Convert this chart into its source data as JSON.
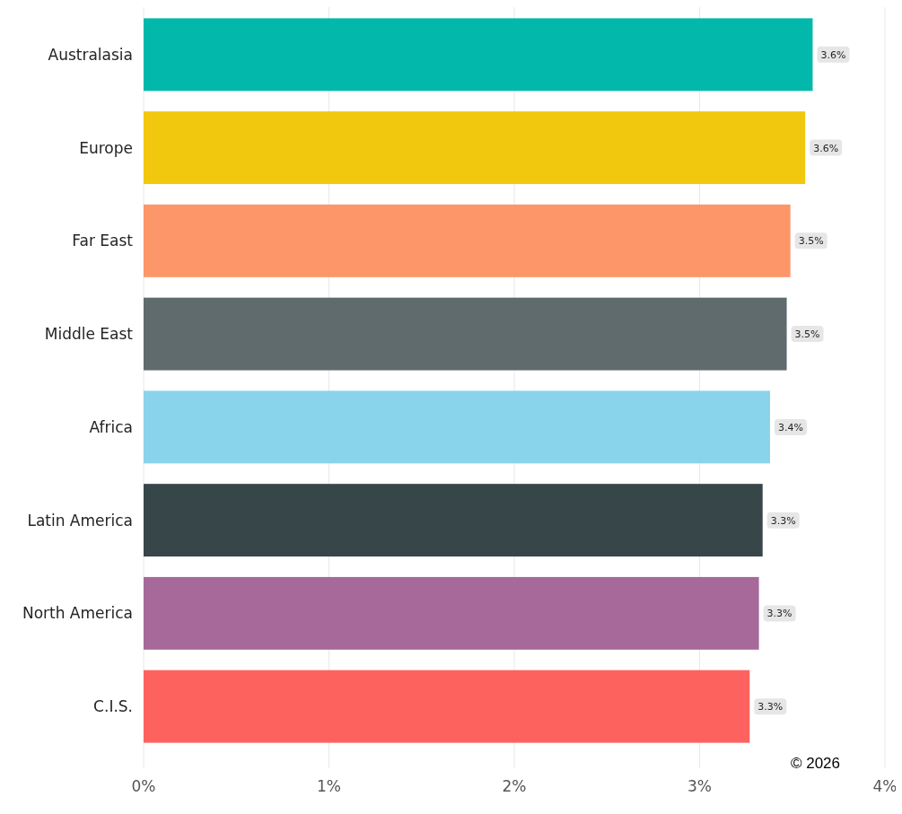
{
  "chart_data": {
    "type": "bar",
    "orientation": "horizontal",
    "categories": [
      "Australasia",
      "Europe",
      "Far East",
      "Middle East",
      "Africa",
      "Latin America",
      "North America",
      "C.I.S."
    ],
    "values": [
      3.61,
      3.57,
      3.49,
      3.47,
      3.38,
      3.34,
      3.32,
      3.27
    ],
    "value_labels": [
      "3.6%",
      "3.6%",
      "3.5%",
      "3.5%",
      "3.4%",
      "3.3%",
      "3.3%",
      "3.3%"
    ],
    "colors": [
      "#01b8aa",
      "#f2c80f",
      "#fd9668",
      "#5f6b6d",
      "#8ad4eb",
      "#374649",
      "#a66999",
      "#fe625e"
    ],
    "xlim": [
      0,
      4
    ],
    "xticks": [
      {
        "value": 0,
        "label": "0%"
      },
      {
        "value": 1,
        "label": "1%"
      },
      {
        "value": 2,
        "label": "2%"
      },
      {
        "value": 3,
        "label": "3%"
      },
      {
        "value": 4,
        "label": "4%"
      }
    ],
    "grid": "x",
    "annotations": [
      "© 2026"
    ]
  }
}
